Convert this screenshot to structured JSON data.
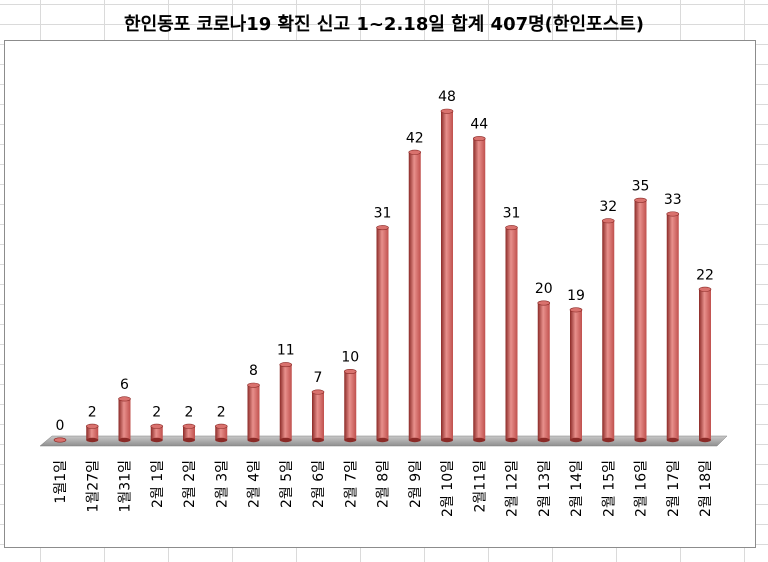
{
  "title": "한인동포 코로나19 확진 신고 1~2.18일 합계 407명(한인포스트)",
  "chart_data": {
    "type": "bar",
    "title": "한인동포 코로나19 확진 신고 1~2.18일 합계 407명(한인포스트)",
    "categories": [
      "1월1일",
      "1월27일",
      "1월31일",
      "2월 1일",
      "2월 2일",
      "2월 3일",
      "2월 4일",
      "2월 5일",
      "2월 6일",
      "2월 7일",
      "2월 8일",
      "2월 9일",
      "2월 10일",
      "2월11일",
      "2월 12일",
      "2월 13일",
      "2월 14일",
      "2월 15일",
      "2월 16일",
      "2월 17일",
      "2월 18일"
    ],
    "values": [
      0,
      2,
      6,
      2,
      2,
      2,
      8,
      11,
      7,
      10,
      31,
      42,
      48,
      44,
      31,
      20,
      19,
      32,
      35,
      33,
      22
    ],
    "xlabel": "",
    "ylabel": "",
    "ylim": [
      0,
      50
    ],
    "data_labels": true,
    "grid": false,
    "legend": "none",
    "bar_color": "#c0504d",
    "bar_dark": "#8b2a27",
    "bar_light": "#e8908c",
    "floor_color": "#a6a6a6"
  }
}
